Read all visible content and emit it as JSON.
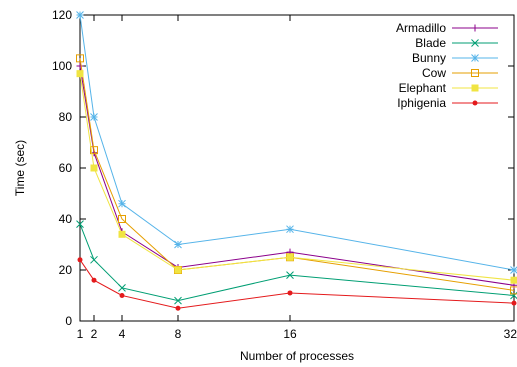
{
  "chart_data": {
    "type": "line",
    "title": "",
    "xlabel": "Number of processes",
    "ylabel": "Time (sec)",
    "x": [
      1,
      2,
      4,
      8,
      16,
      32
    ],
    "xlim": [
      1,
      32
    ],
    "ylim": [
      0,
      120
    ],
    "xticks": [
      1,
      2,
      4,
      8,
      16,
      32
    ],
    "yticks": [
      0,
      20,
      40,
      60,
      80,
      100,
      120
    ],
    "grid": false,
    "legend_position": "top-right",
    "series": [
      {
        "name": "Armadillo",
        "color": "#8b008b",
        "marker": "plus",
        "values": [
          100,
          66,
          35,
          21,
          27,
          14
        ]
      },
      {
        "name": "Blade",
        "color": "#009e73",
        "marker": "cross",
        "values": [
          38,
          24,
          13,
          8,
          18,
          10
        ]
      },
      {
        "name": "Bunny",
        "color": "#56b4e9",
        "marker": "star",
        "values": [
          120,
          80,
          46,
          30,
          36,
          20
        ]
      },
      {
        "name": "Cow",
        "color": "#e69f00",
        "marker": "square",
        "values": [
          103,
          67,
          40,
          20,
          25,
          12
        ]
      },
      {
        "name": "Elephant",
        "color": "#f0e442",
        "marker": "filled-square",
        "values": [
          97,
          60,
          34,
          20,
          25,
          16
        ]
      },
      {
        "name": "Iphigenia",
        "color": "#e41a1c",
        "marker": "circle",
        "values": [
          24,
          16,
          10,
          5,
          11,
          7
        ]
      }
    ]
  }
}
